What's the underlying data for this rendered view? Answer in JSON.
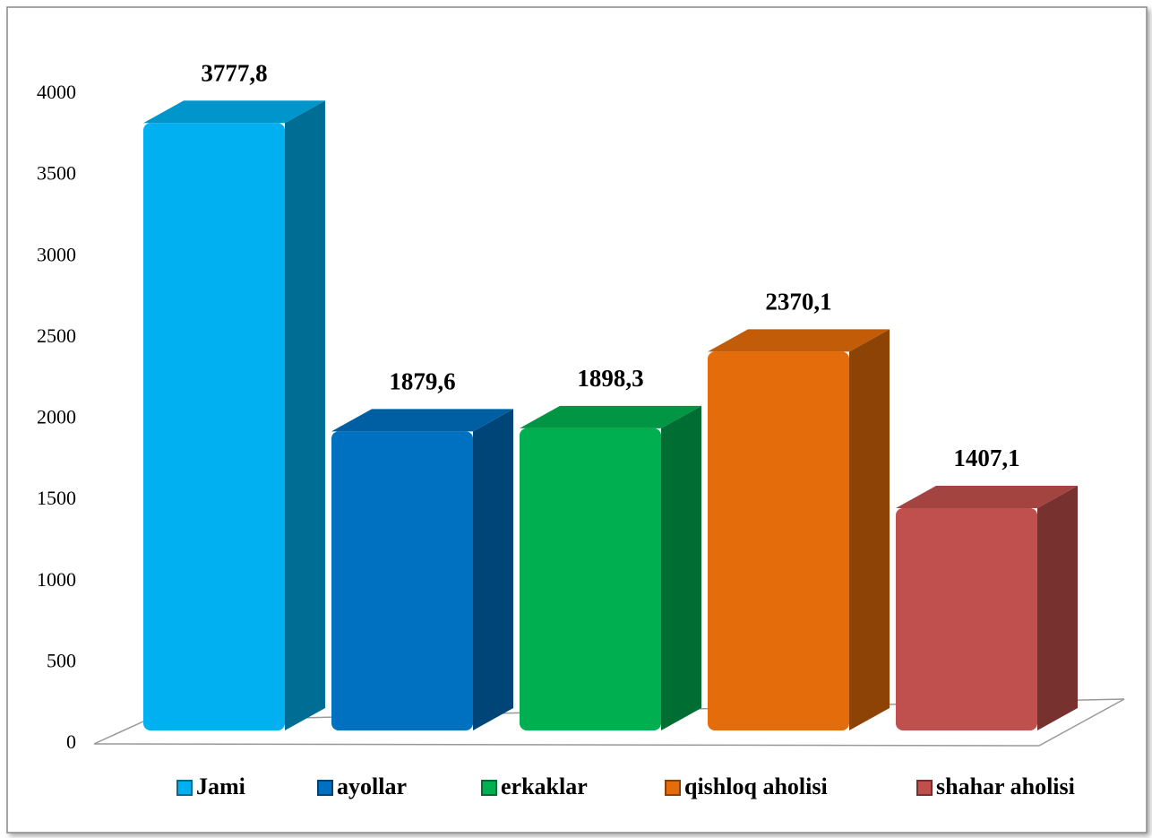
{
  "chart_data": {
    "type": "bar",
    "series": [
      {
        "name": "Jami",
        "color": "#00b0f0",
        "values": [
          3777.8
        ],
        "value_labels": [
          "3777,8"
        ]
      },
      {
        "name": "ayollar",
        "color": "#0070c0",
        "values": [
          1879.6
        ],
        "value_labels": [
          "1879,6"
        ]
      },
      {
        "name": "erkaklar",
        "color": "#00b050",
        "values": [
          1898.3
        ],
        "value_labels": [
          "1898,3"
        ]
      },
      {
        "name": "qishloq aholisi",
        "color": "#e46c0a",
        "values": [
          2370.1
        ],
        "value_labels": [
          "2370,1"
        ]
      },
      {
        "name": "shahar aholisi",
        "color": "#c0504d",
        "values": [
          1407.1
        ],
        "value_labels": [
          "1407,1"
        ]
      }
    ],
    "ylim": [
      0,
      4000
    ],
    "yticks": [
      0,
      500,
      1000,
      1500,
      2000,
      2500,
      3000,
      3500,
      4000
    ],
    "legend": "bottom"
  }
}
